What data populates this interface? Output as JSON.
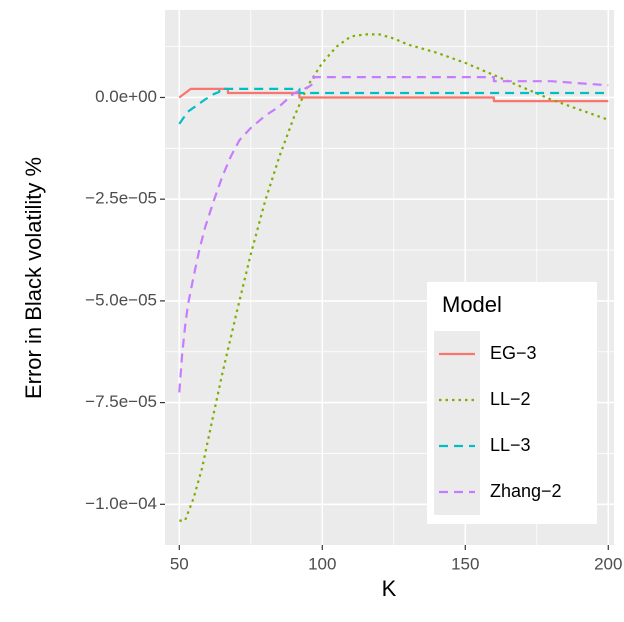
{
  "chart_data": {
    "type": "line",
    "xlabel": "K",
    "ylabel": "Error in Black volatility %",
    "xlim": [
      45,
      202
    ],
    "ylim": [
      -0.00011,
      2.15e-05
    ],
    "x_ticks": [
      50,
      100,
      150,
      200
    ],
    "x_tick_labels": [
      "50",
      "100",
      "150",
      "200"
    ],
    "y_ticks": [
      0,
      -2.5e-05,
      -5e-05,
      -7.5e-05,
      -0.0001
    ],
    "y_tick_labels": [
      "0.0e+00",
      "−2.5e−05",
      "−5.0e−05",
      "−7.5e−05",
      "−1.0e−04"
    ],
    "grid": true,
    "legend_position": "bottom-right",
    "legend_title": "Model",
    "series": [
      {
        "name": "EG−3",
        "color": "#F8766D",
        "dash": "solid",
        "x": [
          50,
          54,
          54,
          67,
          67,
          92,
          92,
          160,
          160,
          200
        ],
        "y": [
          0,
          2.1e-06,
          2.1e-06,
          2.1e-06,
          1.1e-06,
          1.1e-06,
          0,
          0,
          -9e-07,
          -9e-07
        ]
      },
      {
        "name": "LL−2",
        "color": "#7CAE00",
        "dash": "dotted",
        "x": [
          50,
          52,
          55,
          58,
          61,
          65,
          70,
          75,
          80,
          85,
          90,
          95,
          100,
          105,
          110,
          115,
          120,
          125,
          130,
          140,
          150,
          160,
          170,
          180,
          190,
          200
        ],
        "y": [
          -0.000104,
          -0.000104,
          -9.85e-05,
          -9.1e-05,
          -8.1e-05,
          -6.8e-05,
          -5.3e-05,
          -3.85e-05,
          -2.55e-05,
          -1.45e-05,
          -5e-06,
          3e-06,
          8.5e-06,
          1.25e-05,
          1.5e-05,
          1.55e-05,
          1.55e-05,
          1.45e-05,
          1.3e-05,
          1.1e-05,
          8.5e-06,
          5.5e-06,
          2.5e-06,
          -5e-07,
          -3e-06,
          -5.5e-06
        ]
      },
      {
        "name": "LL−3",
        "color": "#00BFC4",
        "dash": "dashed",
        "x": [
          50,
          53,
          56,
          59,
          62,
          64,
          64,
          92,
          92,
          200
        ],
        "y": [
          -6.5e-06,
          -3.5e-06,
          -2e-06,
          -5e-07,
          8e-07,
          1.4e-06,
          2.1e-06,
          2.1e-06,
          1.1e-06,
          1.1e-06
        ]
      },
      {
        "name": "Zhang−2",
        "color": "#C77CFF",
        "dash": "dashed",
        "x": [
          50,
          51,
          52,
          53,
          55,
          57,
          59,
          62,
          65,
          68,
          71,
          75,
          80,
          85,
          90,
          95,
          97,
          97,
          160,
          160,
          180,
          200
        ],
        "y": [
          -7.25e-05,
          -6.3e-05,
          -5.65e-05,
          -5.1e-05,
          -4.4e-05,
          -3.75e-05,
          -3.2e-05,
          -2.55e-05,
          -1.95e-05,
          -1.45e-05,
          -1.05e-05,
          -7.5e-06,
          -4.5e-06,
          -2.2e-06,
          1e-06,
          2.5e-06,
          3.5e-06,
          5e-06,
          5e-06,
          4e-06,
          4e-06,
          3e-06
        ]
      }
    ]
  }
}
